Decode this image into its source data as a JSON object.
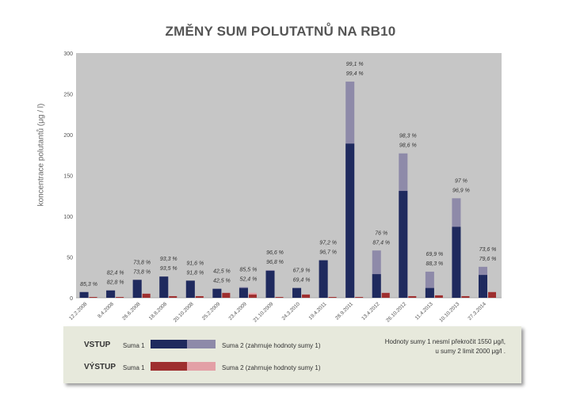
{
  "title": "ZMĚNY SUM POLUTATNŮ NA RB10",
  "ylabel": "koncentrace polutantů  (μg / l)",
  "colors": {
    "plot_bg": "#c6c6c6",
    "input_sum1": "#1f2a5e",
    "input_sum2": "#8e8aa9",
    "output_sum1": "#9e2f2f",
    "output_sum2": "#e3a0a6"
  },
  "legend": {
    "input_label": "VSTUP",
    "output_label": "VÝSTUP",
    "sum1_label": "Suma 1",
    "sum2_label": "Suma 2 (zahrnuje hodnoty sumy 1)",
    "note_line1": "Hodnoty sumy 1 nesmí překročit 1550 μg/l,",
    "note_line2": "u sumy 2 limit 2000 μg/l ."
  },
  "chart_data": {
    "type": "bar",
    "title": "ZMĚNY SUM POLUTATNŮ NA RB10",
    "ylabel": "koncentrace polutantů  (μg / l)",
    "ylim": [
      0,
      300
    ],
    "yticks": [
      0,
      50,
      100,
      150,
      200,
      250,
      300
    ],
    "grid": false,
    "legend": "bottom",
    "categories": [
      "12.2.2008",
      "8.4.2008",
      "26.6.2008",
      "18.8.2008",
      "20.10.2008",
      "25.2.2009",
      "23.4.2009",
      "21.10.2009",
      "24.3.2010",
      "19.4.2011",
      "28.9.2011",
      "13.4.2012",
      "26.10.2012",
      "11.4.2013",
      "10.10.2013",
      "27.3.2014"
    ],
    "series": [
      {
        "name": "VSTUP Suma 1",
        "values": [
          7,
          9,
          22,
          26,
          21,
          11,
          12,
          33,
          12,
          46,
          189,
          29,
          131,
          12,
          87,
          28
        ]
      },
      {
        "name": "VSTUP Suma 2 (zahrnuje hodnoty sumy 1)",
        "values": [
          7,
          9,
          22,
          26,
          21,
          11,
          13,
          34,
          12,
          46,
          265,
          58,
          177,
          32,
          122,
          38
        ]
      },
      {
        "name": "VÝSTUP Suma 1",
        "values": [
          1,
          1,
          5,
          2,
          2,
          6,
          4,
          1,
          4,
          1,
          1,
          6,
          2,
          3,
          2,
          7
        ]
      },
      {
        "name": "VÝSTUP Suma 2 (zahrnuje hodnoty sumy 1)",
        "values": [
          1,
          1,
          5,
          2,
          2,
          6,
          6,
          1,
          4,
          1,
          1,
          6,
          2,
          3,
          2,
          7
        ]
      }
    ],
    "annotations": [
      {
        "category": "12.2.2008",
        "lines": [
          "85,3 %"
        ]
      },
      {
        "category": "8.4.2008",
        "lines": [
          "82,4 %",
          "82,8 %"
        ]
      },
      {
        "category": "26.6.2008",
        "lines": [
          "73,8 %",
          "73,8 %"
        ]
      },
      {
        "category": "18.8.2008",
        "lines": [
          "93,3 %",
          "93,5 %"
        ]
      },
      {
        "category": "20.10.2008",
        "lines": [
          "91,6 %",
          "91,8 %"
        ]
      },
      {
        "category": "25.2.2009",
        "lines": [
          "42,5 %",
          "42,5 %"
        ]
      },
      {
        "category": "23.4.2009",
        "lines": [
          "85,5 %",
          "52,4 %"
        ]
      },
      {
        "category": "21.10.2009",
        "lines": [
          "96,6 %",
          "96,8 %"
        ]
      },
      {
        "category": "24.3.2010",
        "lines": [
          "67,9 %",
          "69,4 %"
        ]
      },
      {
        "category": "19.4.2011",
        "lines": [
          "97,2 %",
          "96,7 %"
        ]
      },
      {
        "category": "28.9.2011",
        "lines": [
          "99,1 %",
          "99,4 %"
        ]
      },
      {
        "category": "13.4.2012",
        "lines": [
          "76 %",
          "87,4 %"
        ]
      },
      {
        "category": "26.10.2012",
        "lines": [
          "98,3 %",
          "98,6 %"
        ]
      },
      {
        "category": "11.4.2013",
        "lines": [
          "69,9 %",
          "88,3 %"
        ]
      },
      {
        "category": "10.10.2013",
        "lines": [
          "97 %",
          "96,9 %"
        ]
      },
      {
        "category": "27.3.2014",
        "lines": [
          "73,6 %",
          "79,6 %"
        ]
      }
    ]
  }
}
